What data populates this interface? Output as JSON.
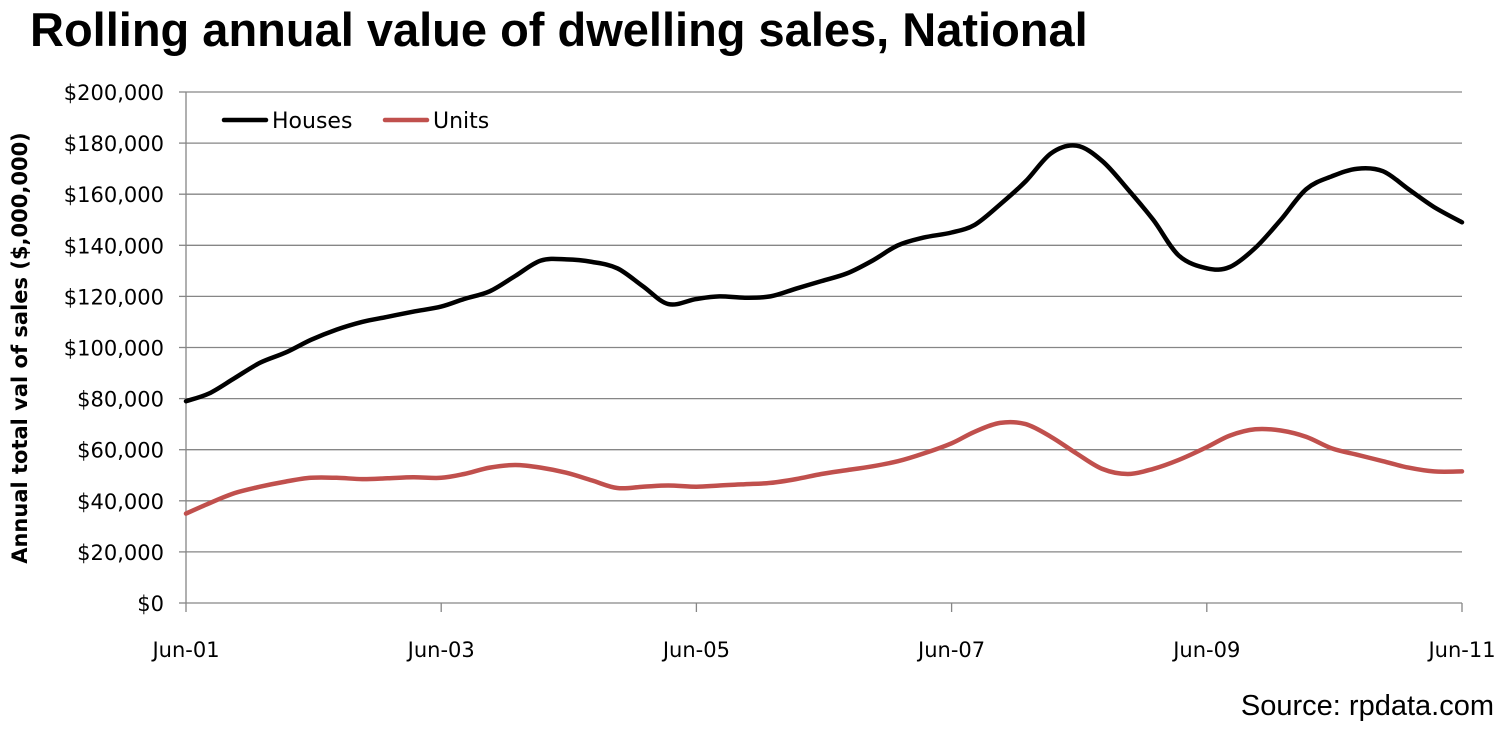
{
  "chart_data": {
    "type": "line",
    "title": "Rolling annual value of dwelling sales, National",
    "xlabel": "",
    "ylabel": "Annual total val of sales ($,000,000)",
    "source": "Source: rpdata.com",
    "ylim": [
      0,
      200000
    ],
    "yticks": [
      0,
      20000,
      40000,
      60000,
      80000,
      100000,
      120000,
      140000,
      160000,
      180000,
      200000
    ],
    "ytick_labels": [
      "$0",
      "$20,000",
      "$40,000",
      "$60,000",
      "$80,000",
      "$100,000",
      "$120,000",
      "$140,000",
      "$160,000",
      "$180,000",
      "$200,000"
    ],
    "xlim": [
      2001.42,
      2011.42
    ],
    "xticks": [
      2001.42,
      2003.42,
      2005.42,
      2007.42,
      2009.42,
      2011.42
    ],
    "xtick_labels": [
      "Jun-01",
      "Jun-03",
      "Jun-05",
      "Jun-07",
      "Jun-09",
      "Jun-11"
    ],
    "grid": true,
    "legend": "top-left",
    "series": [
      {
        "name": "Houses",
        "color": "#000000",
        "x": [
          2001.42,
          2001.6,
          2001.8,
          2002.0,
          2002.2,
          2002.4,
          2002.6,
          2002.8,
          2003.0,
          2003.2,
          2003.42,
          2003.6,
          2003.8,
          2004.0,
          2004.2,
          2004.4,
          2004.6,
          2004.8,
          2005.0,
          2005.2,
          2005.42,
          2005.6,
          2005.8,
          2006.0,
          2006.2,
          2006.4,
          2006.6,
          2006.8,
          2007.0,
          2007.2,
          2007.42,
          2007.6,
          2007.8,
          2008.0,
          2008.2,
          2008.4,
          2008.6,
          2008.8,
          2009.0,
          2009.2,
          2009.42,
          2009.6,
          2009.8,
          2010.0,
          2010.2,
          2010.4,
          2010.6,
          2010.8,
          2011.0,
          2011.2,
          2011.42
        ],
        "values": [
          79000,
          82000,
          88000,
          94000,
          98000,
          103000,
          107000,
          110000,
          112000,
          114000,
          116000,
          119000,
          122000,
          128000,
          134000,
          134500,
          133500,
          131000,
          124000,
          117000,
          119000,
          120000,
          119500,
          120000,
          123000,
          126000,
          129000,
          134000,
          140000,
          143000,
          145000,
          148000,
          156000,
          165000,
          176000,
          179000,
          173000,
          162000,
          150000,
          136000,
          131000,
          131500,
          139000,
          150000,
          162000,
          167000,
          170000,
          169000,
          162000,
          155000,
          149000
        ]
      },
      {
        "name": "Units",
        "color": "#c0504d",
        "x": [
          2001.42,
          2001.6,
          2001.8,
          2002.0,
          2002.2,
          2002.4,
          2002.6,
          2002.8,
          2003.0,
          2003.2,
          2003.42,
          2003.6,
          2003.8,
          2004.0,
          2004.2,
          2004.4,
          2004.6,
          2004.8,
          2005.0,
          2005.2,
          2005.42,
          2005.6,
          2005.8,
          2006.0,
          2006.2,
          2006.4,
          2006.6,
          2006.8,
          2007.0,
          2007.2,
          2007.42,
          2007.6,
          2007.8,
          2008.0,
          2008.2,
          2008.4,
          2008.6,
          2008.8,
          2009.0,
          2009.2,
          2009.42,
          2009.6,
          2009.8,
          2010.0,
          2010.2,
          2010.4,
          2010.6,
          2010.8,
          2011.0,
          2011.2,
          2011.42
        ],
        "values": [
          35000,
          39000,
          43000,
          45500,
          47500,
          49000,
          49000,
          48500,
          48800,
          49200,
          49000,
          50500,
          53000,
          54000,
          53000,
          51000,
          48000,
          45000,
          45500,
          46000,
          45500,
          46000,
          46500,
          47000,
          48500,
          50500,
          52000,
          53500,
          55500,
          58500,
          62500,
          67000,
          70500,
          70000,
          65000,
          58500,
          52500,
          50500,
          52500,
          56000,
          61000,
          65500,
          68000,
          67500,
          65000,
          60500,
          58000,
          55500,
          53000,
          51500,
          51500
        ]
      }
    ]
  }
}
